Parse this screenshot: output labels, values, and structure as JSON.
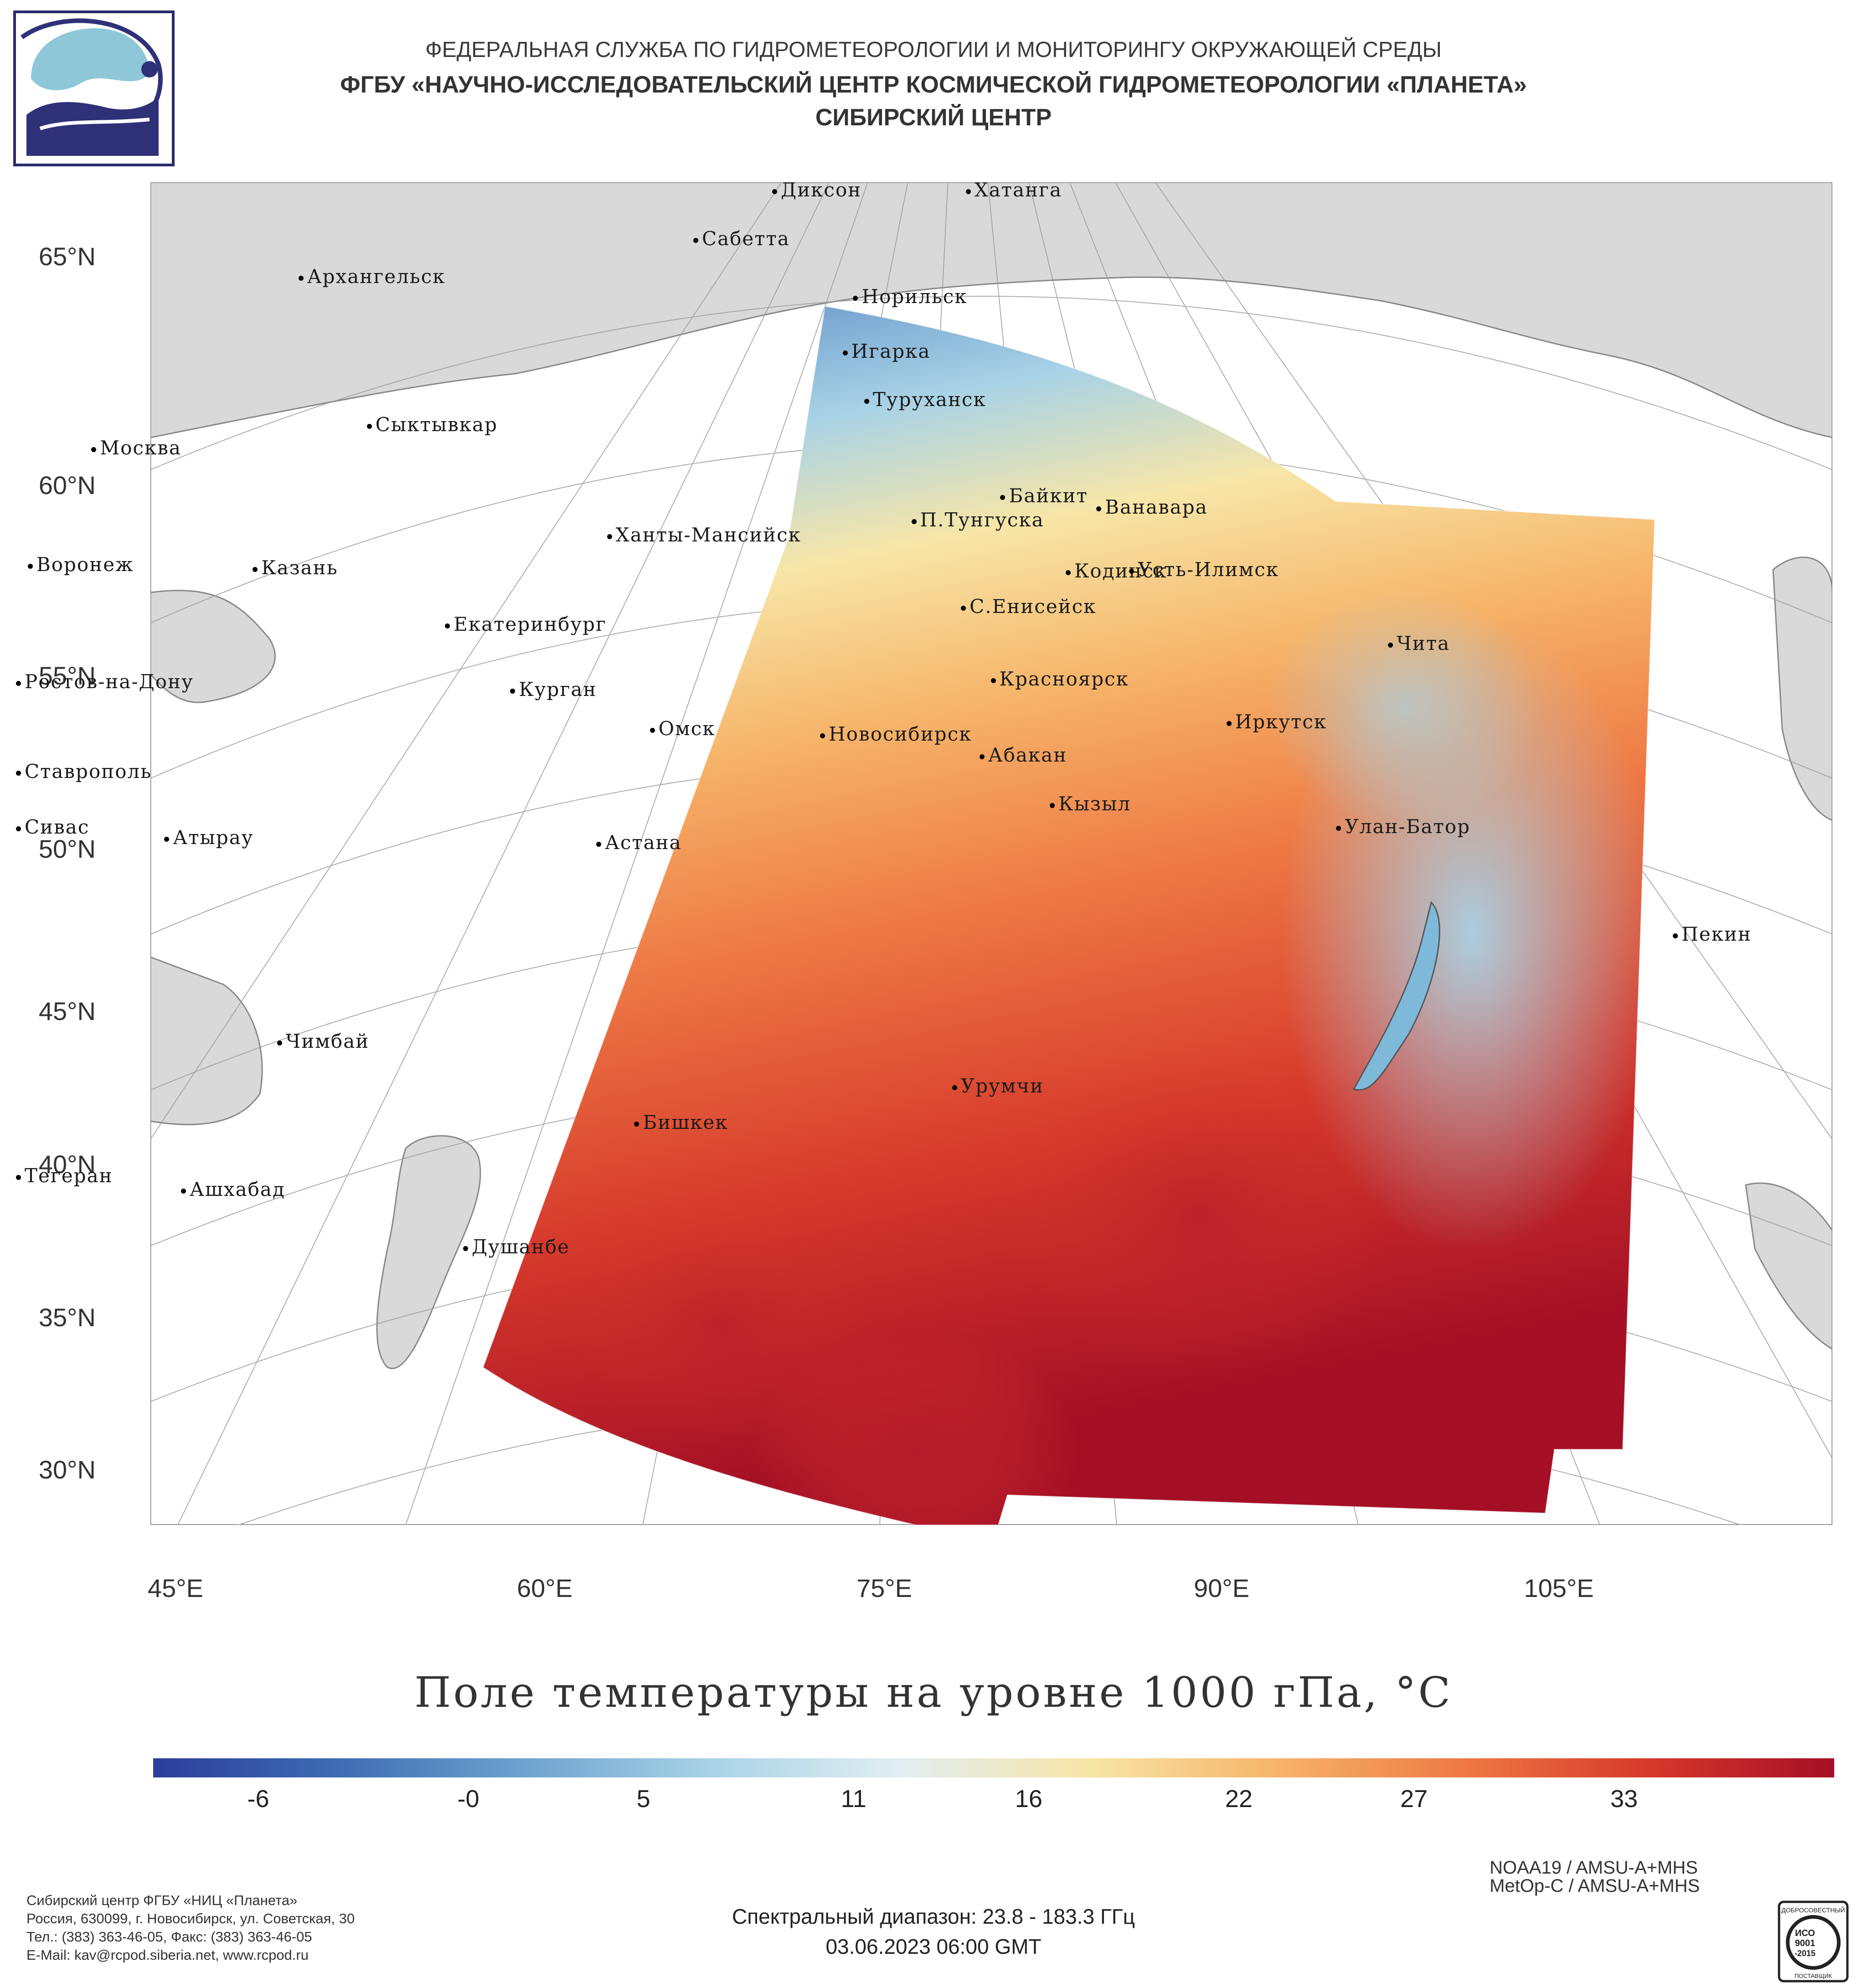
{
  "header": {
    "line1": "ФЕДЕРАЛЬНАЯ СЛУЖБА ПО ГИДРОМЕТЕОРОЛОГИИ И МОНИТОРИНГУ ОКРУЖАЮЩЕЙ СРЕДЫ",
    "line2": "ФГБУ «НАУЧНО-ИССЛЕДОВАТЕЛЬСКИЙ ЦЕНТР КОСМИЧЕСКОЙ ГИДРОМЕТЕОРОЛОГИИ «ПЛАНЕТА»",
    "line3": "СИБИРСКИЙ ЦЕНТР"
  },
  "map": {
    "lat_labels": [
      "65°N",
      "60°N",
      "55°N",
      "50°N",
      "45°N",
      "40°N",
      "35°N",
      "30°N"
    ],
    "lon_labels": [
      "45°E",
      "60°E",
      "75°E",
      "90°E",
      "105°E"
    ],
    "cities": [
      {
        "name": "Диксон",
        "lon": 80.5,
        "lat": 73.5
      },
      {
        "name": "Хатанга",
        "lon": 102.5,
        "lat": 72.0
      },
      {
        "name": "Сабетта",
        "lon": 72.0,
        "lat": 71.3
      },
      {
        "name": "Норильск",
        "lon": 88.2,
        "lat": 69.3
      },
      {
        "name": "Архангельск",
        "lon": 40.5,
        "lat": 64.5
      },
      {
        "name": "Игарка",
        "lon": 86.6,
        "lat": 67.5
      },
      {
        "name": "Туруханск",
        "lon": 87.9,
        "lat": 65.8
      },
      {
        "name": "Сыктывкар",
        "lon": 50.8,
        "lat": 61.7
      },
      {
        "name": "Байкит",
        "lon": 96.4,
        "lat": 61.7
      },
      {
        "name": "П.Тунгуска",
        "lon": 90.0,
        "lat": 61.6
      },
      {
        "name": "Ванавара",
        "lon": 102.3,
        "lat": 60.3
      },
      {
        "name": "Москва",
        "lon": 37.6,
        "lat": 55.8
      },
      {
        "name": "Ханты-Мансийск",
        "lon": 69.0,
        "lat": 61.0
      },
      {
        "name": "С.Енисейск",
        "lon": 92.1,
        "lat": 58.5
      },
      {
        "name": "Кодинск",
        "lon": 99.0,
        "lat": 58.7
      },
      {
        "name": "Усть-Илимск",
        "lon": 102.7,
        "lat": 58.0
      },
      {
        "name": "Казань",
        "lon": 49.1,
        "lat": 55.8
      },
      {
        "name": "Екатеринбург",
        "lon": 60.6,
        "lat": 56.8
      },
      {
        "name": "Воронеж",
        "lon": 39.2,
        "lat": 51.7
      },
      {
        "name": "Курган",
        "lon": 65.3,
        "lat": 55.4
      },
      {
        "name": "Красноярск",
        "lon": 92.9,
        "lat": 56.0
      },
      {
        "name": "Чита",
        "lon": 113.5,
        "lat": 52.0
      },
      {
        "name": "Омск",
        "lon": 73.4,
        "lat": 55.0
      },
      {
        "name": "Новосибирск",
        "lon": 82.9,
        "lat": 55.0
      },
      {
        "name": "Иркутск",
        "lon": 104.3,
        "lat": 52.3
      },
      {
        "name": "Ростов-на-Дону",
        "lon": 39.7,
        "lat": 47.2
      },
      {
        "name": "Абакан",
        "lon": 91.4,
        "lat": 53.7
      },
      {
        "name": "Кызыл",
        "lon": 94.4,
        "lat": 51.7
      },
      {
        "name": "Ставрополь",
        "lon": 42.0,
        "lat": 45.0
      },
      {
        "name": "Астана",
        "lon": 71.4,
        "lat": 51.2
      },
      {
        "name": "Улан-Батор",
        "lon": 106.9,
        "lat": 47.9
      },
      {
        "name": "Атырау",
        "lon": 51.9,
        "lat": 47.1
      },
      {
        "name": "Сивас",
        "lon": 37.0,
        "lat": 39.7
      },
      {
        "name": "Пекин",
        "lon": 116.4,
        "lat": 39.9
      },
      {
        "name": "Чимбай",
        "lon": 59.8,
        "lat": 42.9
      },
      {
        "name": "Урумчи",
        "lon": 87.6,
        "lat": 43.8
      },
      {
        "name": "Бишкек",
        "lon": 74.6,
        "lat": 42.9
      },
      {
        "name": "Ашхабад",
        "lon": 58.4,
        "lat": 37.9
      },
      {
        "name": "Тегеран",
        "lon": 51.4,
        "lat": 35.7
      },
      {
        "name": "Душанбе",
        "lon": 68.8,
        "lat": 38.6
      }
    ]
  },
  "chart_data": {
    "type": "heatmap",
    "title": "Поле температуры на уровне 1000 гПа, °C",
    "colorbar_ticks": [
      "-6",
      "-0",
      "5",
      "11",
      "16",
      "22",
      "27",
      "33"
    ],
    "colorbar_range": [
      -9,
      39
    ],
    "colorscale": [
      "#2b3d9b",
      "#3f6cb3",
      "#6fa3cf",
      "#a9d3e6",
      "#e2eef2",
      "#f7e6a8",
      "#f6b56a",
      "#ee7a45",
      "#d6392b",
      "#a50f26"
    ]
  },
  "footer": {
    "org_lines": [
      "Сибирский центр ФГБУ «НИЦ «Планета»",
      "Россия, 630099, г. Новосибирск, ул. Советская, 30",
      "Тел.: (383) 363-46-05, Факс: (383) 363-46-05",
      "E-Mail: kav@rcpod.siberia.net, www.rcpod.ru"
    ],
    "instruments": [
      "NOAA19 / AMSU-A+MHS",
      "MetOp-C / AMSU-A+MHS"
    ],
    "spectral": "Спектральный диапазон: 23.8 - 183.3 ГГц",
    "datetime": "03.06.2023 06:00 GMT",
    "iso_badge": {
      "top": "ДОБРОСОВЕСТНЫЙ",
      "iso": "ИСО",
      "num": "9001",
      "year": "-2015",
      "bottom": "ПОСТАВЩИК"
    }
  }
}
